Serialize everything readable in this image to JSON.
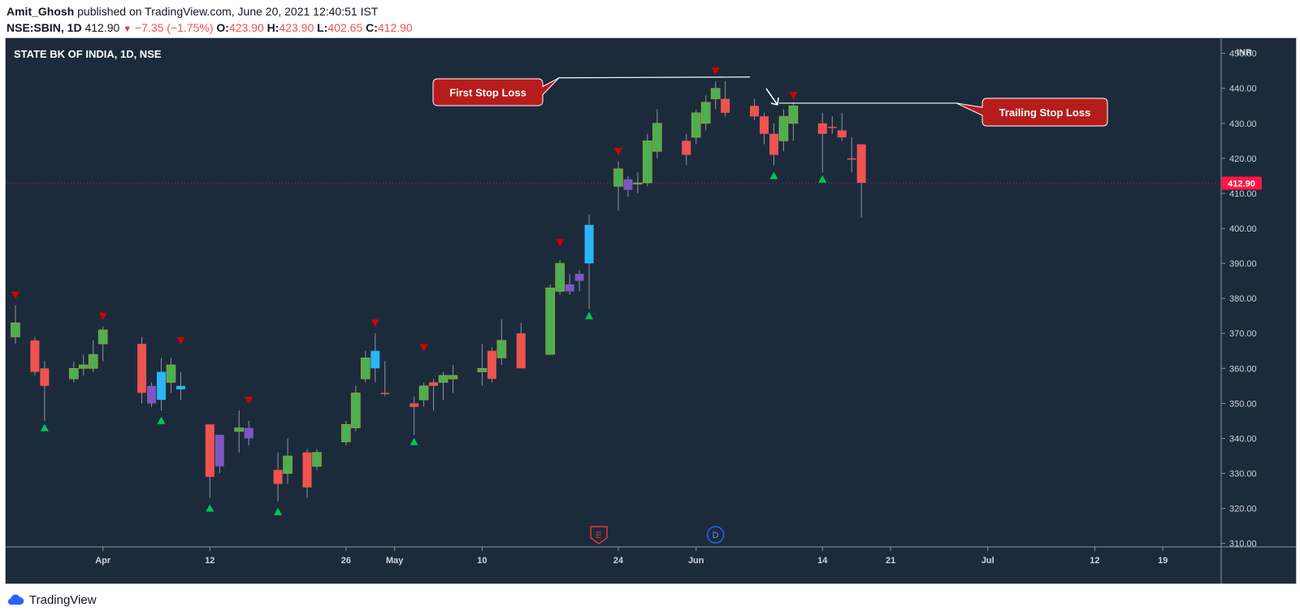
{
  "header": {
    "author": "Amit_Ghosh",
    "published_text": "published on TradingView.com, June 20, 2021 12:40:51 IST",
    "symbol": "NSE:SBIN, 1D",
    "last": "412.90",
    "change": "−7.35 (−1.75%)",
    "o_label": "O:",
    "o_value": "423.90",
    "h_label": "H:",
    "h_value": "423.90",
    "l_label": "L:",
    "l_value": "402.65",
    "c_label": "C:",
    "c_value": "412.90"
  },
  "chart_title": "STATE BK OF INDIA, 1D, NSE",
  "currency": "INR",
  "price_label": "412.90",
  "footer": {
    "brand": "TradingView"
  },
  "colors": {
    "background": "#1c2b3c",
    "up": "#4caf50",
    "down": "#ef5350",
    "cyan": "#29b6f6",
    "purple": "#7e57c2",
    "marker_up": "#00c853",
    "marker_down": "#d50000",
    "callout": "#b71c1c",
    "price_line": "#ff1744"
  },
  "annotations": {
    "first_stop_loss": {
      "label": "First Stop Loss",
      "price": 443
    },
    "trailing_stop_loss": {
      "label": "Trailing Stop Loss",
      "price": 436
    }
  },
  "events": [
    {
      "label": "E",
      "date": "2021-05-22"
    },
    {
      "label": "D",
      "date": "2021-06-03"
    }
  ],
  "chart_data": {
    "type": "candlestick",
    "title": "STATE BK OF INDIA, 1D, NSE",
    "ylabel": "INR",
    "ylim": [
      309,
      452
    ],
    "yticks": [
      310,
      320,
      330,
      340,
      350,
      360,
      370,
      380,
      390,
      400,
      410,
      420,
      430,
      440,
      450
    ],
    "xticks": [
      {
        "label": "Apr",
        "date": "2021-04-01"
      },
      {
        "label": "12",
        "date": "2021-04-12"
      },
      {
        "label": "26",
        "date": "2021-04-26"
      },
      {
        "label": "May",
        "date": "2021-05-01"
      },
      {
        "label": "10",
        "date": "2021-05-10"
      },
      {
        "label": "24",
        "date": "2021-05-24"
      },
      {
        "label": "Jun",
        "date": "2021-06-01"
      },
      {
        "label": "14",
        "date": "2021-06-14"
      },
      {
        "label": "21",
        "date": "2021-06-21"
      },
      {
        "label": "Jul",
        "date": "2021-07-01"
      },
      {
        "label": "12",
        "date": "2021-07-12"
      },
      {
        "label": "19",
        "date": "2021-07-19"
      }
    ],
    "x_range": [
      "2021-03-22",
      "2021-07-25"
    ],
    "candles": [
      {
        "date": "2021-03-23",
        "o": 369,
        "h": 378,
        "l": 367,
        "c": 373,
        "color": "up"
      },
      {
        "date": "2021-03-25",
        "o": 368,
        "h": 369,
        "l": 358,
        "c": 359,
        "color": "down"
      },
      {
        "date": "2021-03-26",
        "o": 360,
        "h": 362,
        "l": 345,
        "c": 355,
        "color": "down"
      },
      {
        "date": "2021-03-29",
        "o": 357,
        "h": 362,
        "l": 356,
        "c": 360,
        "color": "up"
      },
      {
        "date": "2021-03-30",
        "o": 360,
        "h": 364,
        "l": 358,
        "c": 361,
        "color": "up"
      },
      {
        "date": "2021-03-31",
        "o": 360,
        "h": 368,
        "l": 359,
        "c": 364,
        "color": "up"
      },
      {
        "date": "2021-04-01",
        "o": 367,
        "h": 372,
        "l": 362,
        "c": 371,
        "color": "up"
      },
      {
        "date": "2021-04-05",
        "o": 367,
        "h": 369,
        "l": 350,
        "c": 353,
        "color": "down"
      },
      {
        "date": "2021-04-06",
        "o": 355,
        "h": 356,
        "l": 349,
        "c": 350,
        "color": "purple"
      },
      {
        "date": "2021-04-07",
        "o": 351,
        "h": 363,
        "l": 348,
        "c": 359,
        "color": "cyan"
      },
      {
        "date": "2021-04-08",
        "o": 356,
        "h": 363,
        "l": 353,
        "c": 361,
        "color": "up"
      },
      {
        "date": "2021-04-09",
        "o": 355,
        "h": 359,
        "l": 351,
        "c": 354,
        "color": "cyan"
      },
      {
        "date": "2021-04-12",
        "o": 344,
        "h": 344,
        "l": 323,
        "c": 329,
        "color": "down"
      },
      {
        "date": "2021-04-13",
        "o": 341,
        "h": 341,
        "l": 330,
        "c": 332,
        "color": "purple"
      },
      {
        "date": "2021-04-15",
        "o": 342,
        "h": 348,
        "l": 336,
        "c": 343,
        "color": "up"
      },
      {
        "date": "2021-04-16",
        "o": 343,
        "h": 345,
        "l": 338,
        "c": 340,
        "color": "purple"
      },
      {
        "date": "2021-04-19",
        "o": 331,
        "h": 336,
        "l": 322,
        "c": 327,
        "color": "down"
      },
      {
        "date": "2021-04-20",
        "o": 330,
        "h": 340,
        "l": 327,
        "c": 335,
        "color": "up"
      },
      {
        "date": "2021-04-22",
        "o": 336,
        "h": 337,
        "l": 323,
        "c": 326,
        "color": "down"
      },
      {
        "date": "2021-04-23",
        "o": 332,
        "h": 337,
        "l": 331,
        "c": 336,
        "color": "up"
      },
      {
        "date": "2021-04-26",
        "o": 339,
        "h": 345,
        "l": 338,
        "c": 344,
        "color": "up"
      },
      {
        "date": "2021-04-27",
        "o": 343,
        "h": 355,
        "l": 342,
        "c": 353,
        "color": "up"
      },
      {
        "date": "2021-04-28",
        "o": 357,
        "h": 365,
        "l": 356,
        "c": 363,
        "color": "up"
      },
      {
        "date": "2021-04-29",
        "o": 360,
        "h": 370,
        "l": 356,
        "c": 365,
        "color": "cyan"
      },
      {
        "date": "2021-04-30",
        "o": 353,
        "h": 362,
        "l": 352,
        "c": 353,
        "color": "down"
      },
      {
        "date": "2021-05-03",
        "o": 349,
        "h": 352,
        "l": 341,
        "c": 350,
        "color": "down"
      },
      {
        "date": "2021-05-04",
        "o": 351,
        "h": 356,
        "l": 349,
        "c": 355,
        "color": "up"
      },
      {
        "date": "2021-05-05",
        "o": 356,
        "h": 357,
        "l": 348,
        "c": 355,
        "color": "down"
      },
      {
        "date": "2021-05-06",
        "o": 356,
        "h": 359,
        "l": 351,
        "c": 358,
        "color": "up"
      },
      {
        "date": "2021-05-07",
        "o": 357,
        "h": 361,
        "l": 353,
        "c": 358,
        "color": "up"
      },
      {
        "date": "2021-05-10",
        "o": 359,
        "h": 367,
        "l": 355,
        "c": 360,
        "color": "up"
      },
      {
        "date": "2021-05-11",
        "o": 365,
        "h": 366,
        "l": 356,
        "c": 357,
        "color": "down"
      },
      {
        "date": "2021-05-12",
        "o": 363,
        "h": 374,
        "l": 361,
        "c": 368,
        "color": "up"
      },
      {
        "date": "2021-05-14",
        "o": 370,
        "h": 373,
        "l": 360,
        "c": 360,
        "color": "down"
      },
      {
        "date": "2021-05-17",
        "o": 364,
        "h": 384,
        "l": 364,
        "c": 383,
        "color": "up"
      },
      {
        "date": "2021-05-18",
        "o": 382,
        "h": 391,
        "l": 381,
        "c": 390,
        "color": "up"
      },
      {
        "date": "2021-05-19",
        "o": 384,
        "h": 387,
        "l": 381,
        "c": 382,
        "color": "purple"
      },
      {
        "date": "2021-05-20",
        "o": 385,
        "h": 388,
        "l": 382,
        "c": 387,
        "color": "purple"
      },
      {
        "date": "2021-05-21",
        "o": 390,
        "h": 404,
        "l": 377,
        "c": 401,
        "color": "cyan"
      },
      {
        "date": "2021-05-24",
        "o": 412,
        "h": 419,
        "l": 405,
        "c": 417,
        "color": "up"
      },
      {
        "date": "2021-05-25",
        "o": 414,
        "h": 415,
        "l": 409,
        "c": 411,
        "color": "purple"
      },
      {
        "date": "2021-05-26",
        "o": 413,
        "h": 416,
        "l": 410,
        "c": 413,
        "color": "up"
      },
      {
        "date": "2021-05-27",
        "o": 413,
        "h": 427,
        "l": 412,
        "c": 425,
        "color": "up"
      },
      {
        "date": "2021-05-28",
        "o": 422,
        "h": 434,
        "l": 420,
        "c": 430,
        "color": "up"
      },
      {
        "date": "2021-05-31",
        "o": 425,
        "h": 427,
        "l": 418,
        "c": 421,
        "color": "down"
      },
      {
        "date": "2021-06-01",
        "o": 426,
        "h": 434,
        "l": 424,
        "c": 433,
        "color": "up"
      },
      {
        "date": "2021-06-02",
        "o": 430,
        "h": 438,
        "l": 428,
        "c": 436,
        "color": "up"
      },
      {
        "date": "2021-06-03",
        "o": 437,
        "h": 442,
        "l": 434,
        "c": 440,
        "color": "up"
      },
      {
        "date": "2021-06-04",
        "o": 437,
        "h": 442,
        "l": 432,
        "c": 433,
        "color": "down"
      },
      {
        "date": "2021-06-07",
        "o": 435,
        "h": 437,
        "l": 431,
        "c": 432,
        "color": "down"
      },
      {
        "date": "2021-06-08",
        "o": 432,
        "h": 433,
        "l": 424,
        "c": 427,
        "color": "down"
      },
      {
        "date": "2021-06-09",
        "o": 427,
        "h": 430,
        "l": 418,
        "c": 421,
        "color": "down"
      },
      {
        "date": "2021-06-10",
        "o": 425,
        "h": 434,
        "l": 422,
        "c": 432,
        "color": "up"
      },
      {
        "date": "2021-06-11",
        "o": 430,
        "h": 436,
        "l": 425,
        "c": 435,
        "color": "up"
      },
      {
        "date": "2021-06-14",
        "o": 430,
        "h": 433,
        "l": 416,
        "c": 427,
        "color": "down"
      },
      {
        "date": "2021-06-15",
        "o": 429,
        "h": 432,
        "l": 427,
        "c": 429,
        "color": "down"
      },
      {
        "date": "2021-06-16",
        "o": 428,
        "h": 433,
        "l": 425,
        "c": 426,
        "color": "down"
      },
      {
        "date": "2021-06-17",
        "o": 420,
        "h": 426,
        "l": 416,
        "c": 420,
        "color": "down"
      },
      {
        "date": "2021-06-18",
        "o": 424,
        "h": 424,
        "l": 403,
        "c": 413,
        "color": "down"
      }
    ],
    "signal_markers": [
      {
        "date": "2021-03-23",
        "type": "sell",
        "price": 381
      },
      {
        "date": "2021-03-26",
        "type": "buy",
        "price": 343
      },
      {
        "date": "2021-04-01",
        "type": "sell",
        "price": 375
      },
      {
        "date": "2021-04-07",
        "type": "buy",
        "price": 345
      },
      {
        "date": "2021-04-09",
        "type": "sell",
        "price": 368
      },
      {
        "date": "2021-04-12",
        "type": "buy",
        "price": 320
      },
      {
        "date": "2021-04-16",
        "type": "sell",
        "price": 351
      },
      {
        "date": "2021-04-19",
        "type": "buy",
        "price": 319
      },
      {
        "date": "2021-04-29",
        "type": "sell",
        "price": 373
      },
      {
        "date": "2021-05-03",
        "type": "buy",
        "price": 339
      },
      {
        "date": "2021-05-04",
        "type": "sell",
        "price": 366
      },
      {
        "date": "2021-05-18",
        "type": "sell",
        "price": 396
      },
      {
        "date": "2021-05-21",
        "type": "buy",
        "price": 375
      },
      {
        "date": "2021-05-24",
        "type": "sell",
        "price": 422
      },
      {
        "date": "2021-06-03",
        "type": "sell",
        "price": 445
      },
      {
        "date": "2021-06-09",
        "type": "buy",
        "price": 415
      },
      {
        "date": "2021-06-11",
        "type": "sell",
        "price": 438
      },
      {
        "date": "2021-06-14",
        "type": "buy",
        "price": 414
      }
    ],
    "last_price": 412.9
  }
}
